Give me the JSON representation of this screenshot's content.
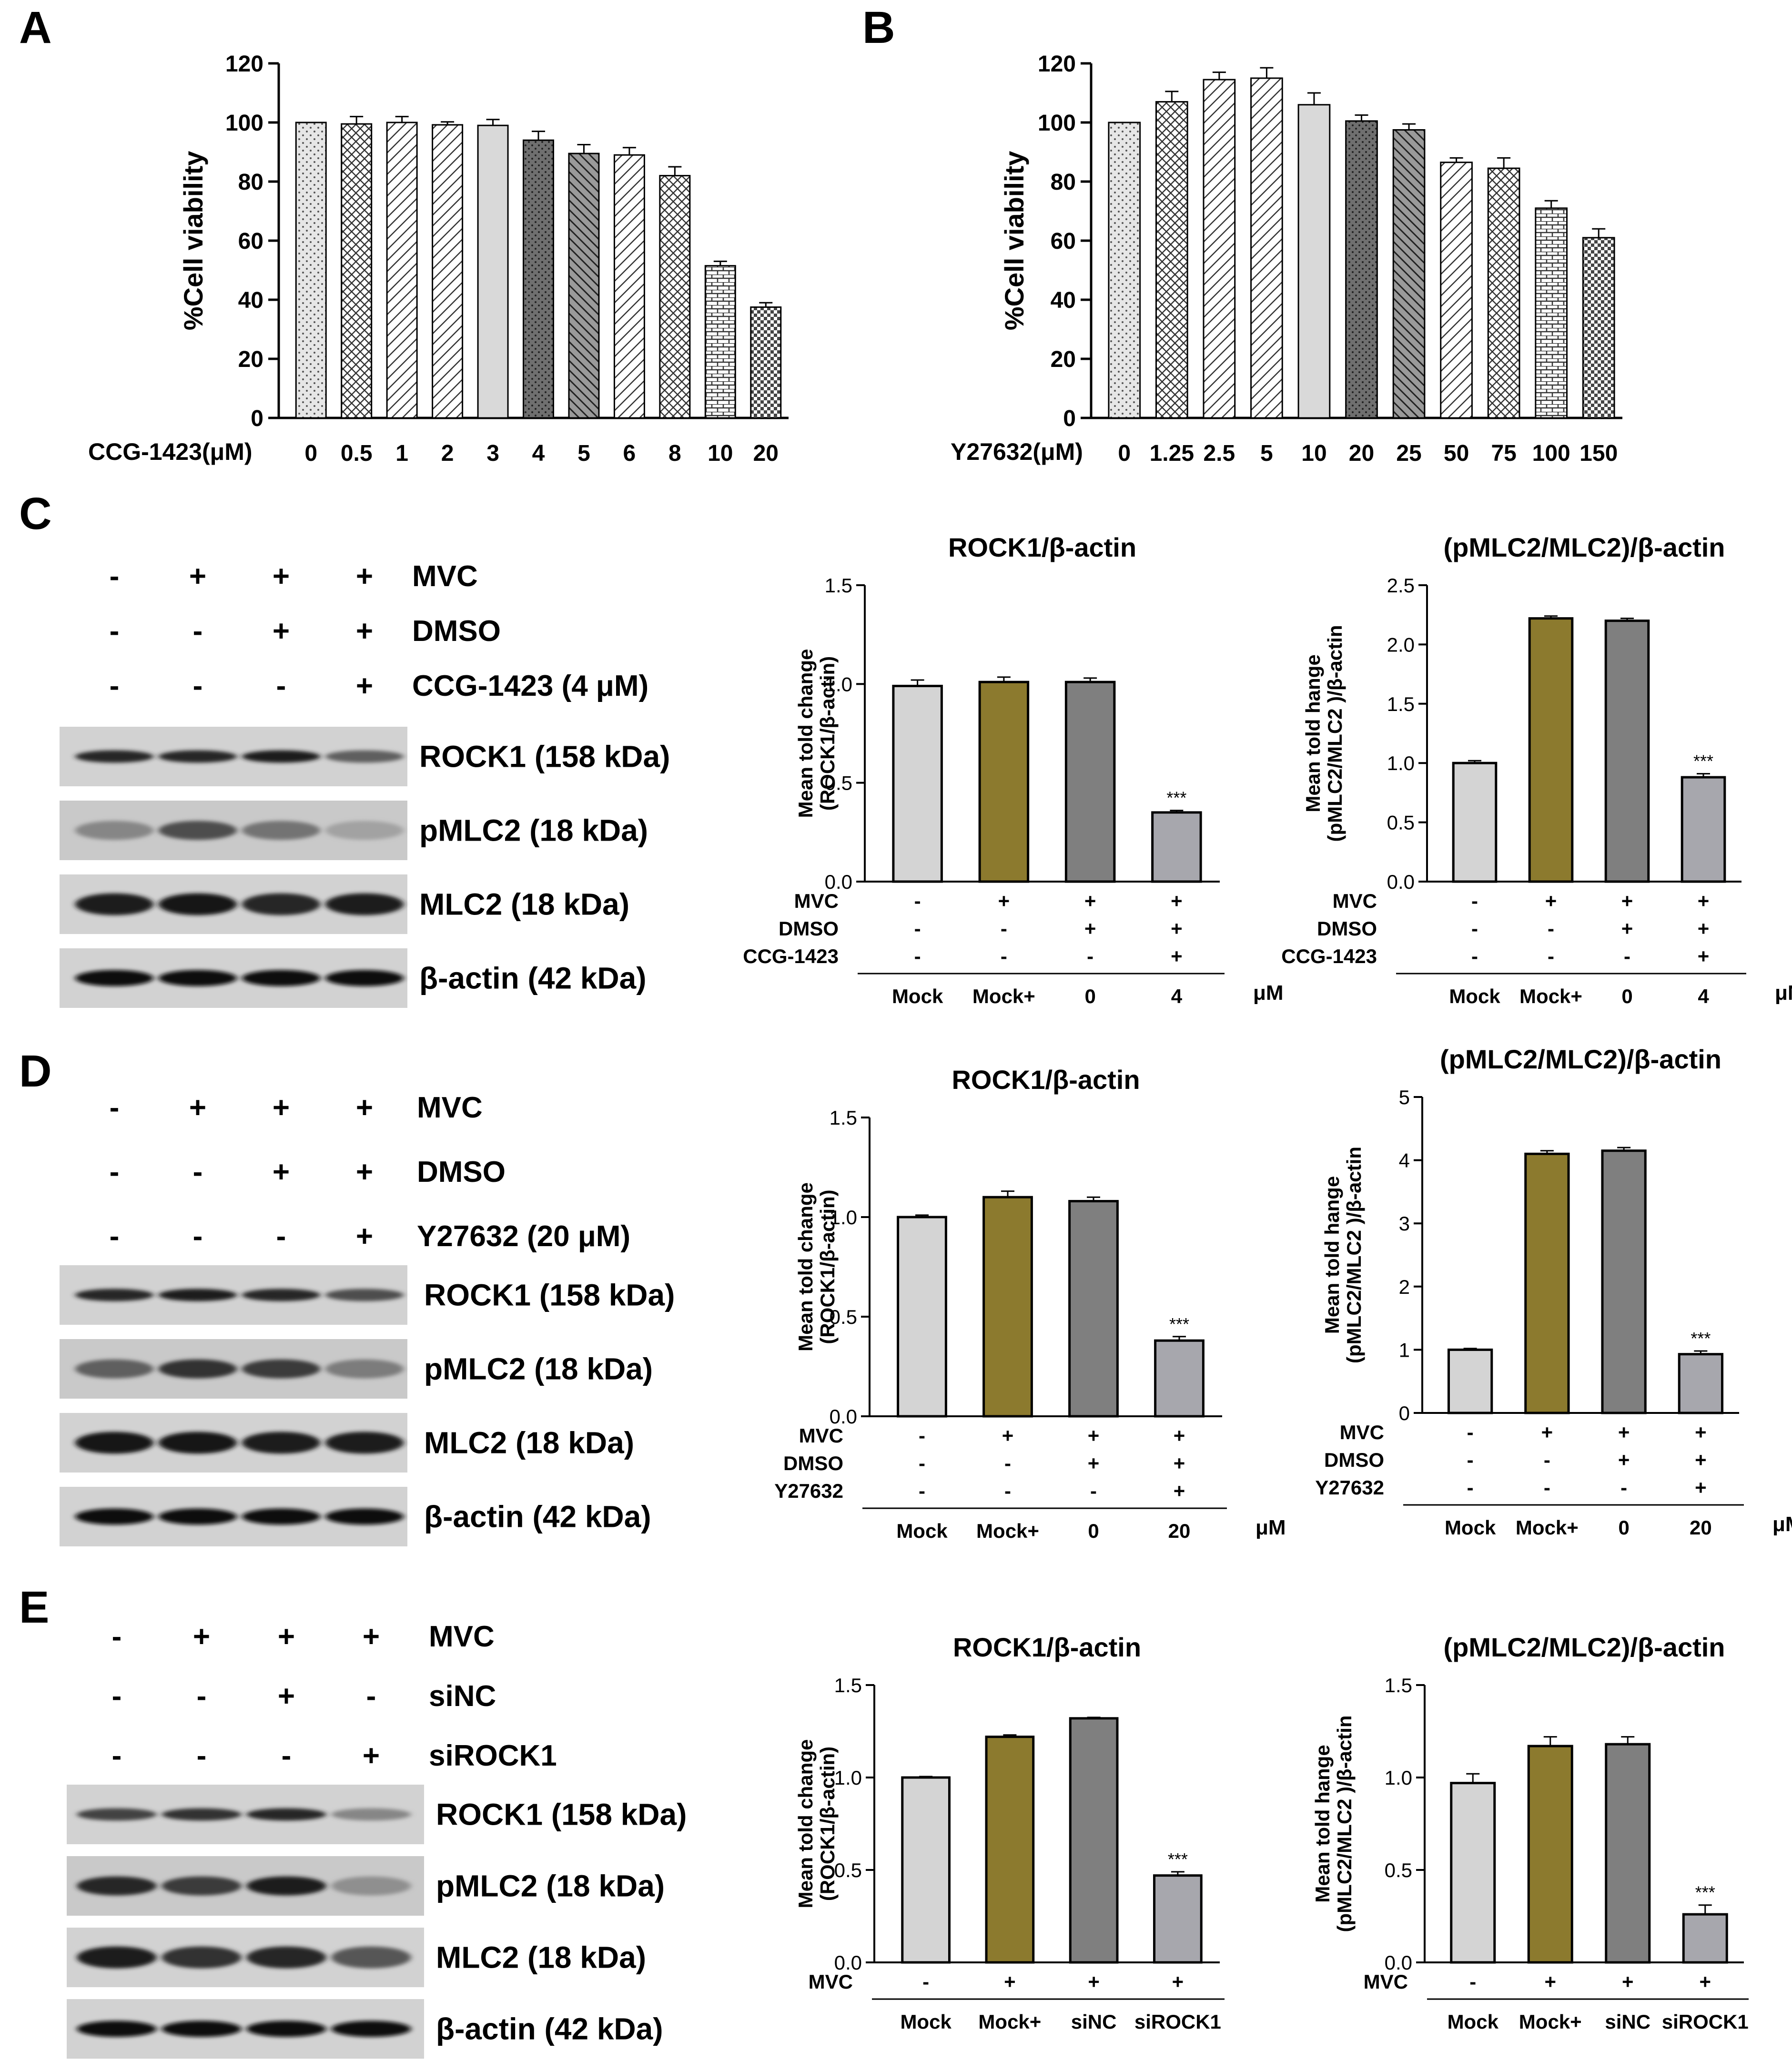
{
  "panel_letters": [
    "A",
    "B",
    "C",
    "D",
    "E"
  ],
  "chart_data": [
    {
      "type": "bar",
      "panel": "A",
      "title": "",
      "ylabel": "%Cell viability",
      "xlabel": "CCG-1423(μM)",
      "ylim": [
        0,
        120
      ],
      "yticks": [
        0,
        20,
        40,
        60,
        80,
        100,
        120
      ],
      "categories": [
        "0",
        "0.5",
        "1",
        "2",
        "3",
        "4",
        "5",
        "6",
        "8",
        "10",
        "20"
      ],
      "values": [
        100,
        99.5,
        100,
        99.2,
        99,
        94,
        89.5,
        89,
        82,
        51.5,
        37.5
      ],
      "errors": [
        0,
        2.5,
        2,
        1,
        2,
        3,
        3,
        2.5,
        3,
        1.5,
        1.5
      ],
      "fills": [
        "dots-light",
        "crosshatch",
        "diag",
        "diag",
        "solid-light",
        "dots-dark",
        "diag-dark",
        "diag",
        "crosshatch",
        "brick",
        "checker"
      ]
    },
    {
      "type": "bar",
      "panel": "B",
      "title": "",
      "ylabel": "%Cell viability",
      "xlabel": "Y27632(μM)",
      "ylim": [
        0,
        120
      ],
      "yticks": [
        0,
        20,
        40,
        60,
        80,
        100,
        120
      ],
      "categories": [
        "0",
        "1.25",
        "2.5",
        "5",
        "10",
        "20",
        "25",
        "50",
        "75",
        "100",
        "150"
      ],
      "values": [
        100,
        107,
        114.5,
        115,
        106,
        100.5,
        97.5,
        86.5,
        84.5,
        71,
        61
      ],
      "errors": [
        0,
        3.5,
        2.5,
        3.5,
        4,
        2,
        2,
        1.5,
        3.5,
        2.5,
        3
      ],
      "fills": [
        "dots-light",
        "crosshatch",
        "diag",
        "diag",
        "solid-light",
        "dots-dark",
        "diag-dark",
        "diag",
        "crosshatch",
        "brick",
        "checker"
      ]
    },
    {
      "type": "bar",
      "panel": "C",
      "title": "ROCK1/β-actin",
      "ylabel_lines": [
        "Mean told change",
        "(ROCK1/β-actin)"
      ],
      "ylim": [
        0,
        1.5
      ],
      "yticks": [
        "0.0",
        "0.5",
        "1.0",
        "1.5"
      ],
      "values": [
        0.99,
        1.01,
        1.01,
        0.35
      ],
      "errors": [
        0.03,
        0.025,
        0.02,
        0.01
      ],
      "sig": "***",
      "cond_rows": [
        {
          "label": "MVC",
          "vals": [
            "-",
            "+",
            "+",
            "+"
          ]
        },
        {
          "label": "DMSO",
          "vals": [
            "-",
            "-",
            "+",
            "+"
          ]
        },
        {
          "label": "CCG-1423",
          "vals": [
            "-",
            "-",
            "-",
            "+"
          ]
        }
      ],
      "categories": [
        "Mock",
        "Mock+",
        "0",
        "4"
      ],
      "unit": "μM"
    },
    {
      "type": "bar",
      "panel": "C",
      "title": "(pMLC2/MLC2)/β-actin",
      "ylabel_lines": [
        "Mean told hange",
        "(pMLC2/MLC2 )/β-actin"
      ],
      "ylim": [
        0,
        2.5
      ],
      "yticks": [
        "0.0",
        "0.5",
        "1.0",
        "1.5",
        "2.0",
        "2.5"
      ],
      "values": [
        1.0,
        2.22,
        2.2,
        0.88
      ],
      "errors": [
        0.02,
        0.02,
        0.02,
        0.03
      ],
      "sig": "***",
      "cond_rows": [
        {
          "label": "MVC",
          "vals": [
            "-",
            "+",
            "+",
            "+"
          ]
        },
        {
          "label": "DMSO",
          "vals": [
            "-",
            "-",
            "+",
            "+"
          ]
        },
        {
          "label": "CCG-1423",
          "vals": [
            "-",
            "-",
            "-",
            "+"
          ]
        }
      ],
      "categories": [
        "Mock",
        "Mock+",
        "0",
        "4"
      ],
      "unit": "μM"
    },
    {
      "type": "bar",
      "panel": "D",
      "title": "ROCK1/β-actin",
      "ylabel_lines": [
        "Mean told change",
        "(ROCK1/β-actin)"
      ],
      "ylim": [
        0,
        1.5
      ],
      "yticks": [
        "0.0",
        "0.5",
        "1.0",
        "1.5"
      ],
      "values": [
        1.0,
        1.1,
        1.08,
        0.38
      ],
      "errors": [
        0.01,
        0.03,
        0.02,
        0.02
      ],
      "sig": "***",
      "cond_rows": [
        {
          "label": "MVC",
          "vals": [
            "-",
            "+",
            "+",
            "+"
          ]
        },
        {
          "label": "DMSO",
          "vals": [
            "-",
            "-",
            "+",
            "+"
          ]
        },
        {
          "label": "Y27632",
          "vals": [
            "-",
            "-",
            "-",
            "+"
          ]
        }
      ],
      "categories": [
        "Mock",
        "Mock+",
        "0",
        "20"
      ],
      "unit": "μM"
    },
    {
      "type": "bar",
      "panel": "D",
      "title": "(pMLC2/MLC2)/β-actin",
      "ylabel_lines": [
        "Mean told hange",
        "(pMLC2/MLC2 )/β-actin"
      ],
      "ylim": [
        0,
        5
      ],
      "yticks": [
        "0",
        "1",
        "2",
        "3",
        "4",
        "5"
      ],
      "values": [
        1.0,
        4.1,
        4.15,
        0.93
      ],
      "errors": [
        0.02,
        0.05,
        0.05,
        0.05
      ],
      "sig": "***",
      "cond_rows": [
        {
          "label": "MVC",
          "vals": [
            "-",
            "+",
            "+",
            "+"
          ]
        },
        {
          "label": "DMSO",
          "vals": [
            "-",
            "-",
            "+",
            "+"
          ]
        },
        {
          "label": "Y27632",
          "vals": [
            "-",
            "-",
            "-",
            "+"
          ]
        }
      ],
      "categories": [
        "Mock",
        "Mock+",
        "0",
        "20"
      ],
      "unit": "μM"
    },
    {
      "type": "bar",
      "panel": "E",
      "title": "ROCK1/β-actin",
      "ylabel_lines": [
        "Mean told change",
        "(ROCK1/β-actin)"
      ],
      "ylim": [
        0,
        1.5
      ],
      "yticks": [
        "0.0",
        "0.5",
        "1.0",
        "1.5"
      ],
      "values": [
        1.0,
        1.22,
        1.32,
        0.47
      ],
      "errors": [
        0.005,
        0.01,
        0.005,
        0.02
      ],
      "sig": "***",
      "cond_rows": [
        {
          "label": "MVC",
          "vals": [
            "-",
            "+",
            "+",
            "+"
          ]
        }
      ],
      "categories": [
        "Mock",
        "Mock+",
        "siNC",
        "siROCK1"
      ],
      "unit": ""
    },
    {
      "type": "bar",
      "panel": "E",
      "title": "(pMLC2/MLC2)/β-actin",
      "ylabel_lines": [
        "Mean told hange",
        "(pMLC2/MLC2 )/β-actin"
      ],
      "ylim": [
        0,
        1.5
      ],
      "yticks": [
        "0.0",
        "0.5",
        "1.0",
        "1.5"
      ],
      "values": [
        0.97,
        1.17,
        1.18,
        0.26
      ],
      "errors": [
        0.05,
        0.05,
        0.04,
        0.05
      ],
      "sig": "***",
      "cond_rows": [
        {
          "label": "MVC",
          "vals": [
            "-",
            "+",
            "+",
            "+"
          ]
        }
      ],
      "categories": [
        "Mock",
        "Mock+",
        "siNC",
        "siROCK1"
      ],
      "unit": ""
    }
  ],
  "blots": [
    {
      "panel": "C",
      "treatments": [
        {
          "label": "MVC",
          "vals": [
            "-",
            "+",
            "+",
            "+"
          ]
        },
        {
          "label": "DMSO",
          "vals": [
            "-",
            "-",
            "+",
            "+"
          ]
        },
        {
          "label": "CCG-1423 (4 μM)",
          "vals": [
            "-",
            "-",
            "-",
            "+"
          ]
        }
      ],
      "bands": [
        {
          "label": "ROCK1 (158  kDa)",
          "intensity": [
            0.85,
            0.85,
            0.9,
            0.55
          ]
        },
        {
          "label": "pMLC2 (18  kDa)",
          "intensity": [
            0.35,
            0.65,
            0.45,
            0.2
          ]
        },
        {
          "label": "MLC2 (18  kDa)",
          "intensity": [
            0.9,
            0.95,
            0.85,
            0.9
          ]
        },
        {
          "label": "β-actin (42  kDa)",
          "intensity": [
            1,
            1,
            1,
            1
          ]
        }
      ]
    },
    {
      "panel": "D",
      "treatments": [
        {
          "label": "MVC",
          "vals": [
            "-",
            "+",
            "+",
            "+"
          ]
        },
        {
          "label": "DMSO",
          "vals": [
            "-",
            "-",
            "+",
            "+"
          ]
        },
        {
          "label": "Y27632 (20 μM)",
          "vals": [
            "-",
            "-",
            "-",
            "+"
          ]
        }
      ],
      "bands": [
        {
          "label": "ROCK1 (158  kDa)",
          "intensity": [
            0.85,
            0.9,
            0.85,
            0.65
          ]
        },
        {
          "label": "pMLC2 (18  kDa)",
          "intensity": [
            0.55,
            0.8,
            0.75,
            0.4
          ]
        },
        {
          "label": "MLC2 (18  kDa)",
          "intensity": [
            0.95,
            0.95,
            0.9,
            0.9
          ]
        },
        {
          "label": "β-actin (42  kDa)",
          "intensity": [
            1,
            1,
            1,
            1
          ]
        }
      ]
    },
    {
      "panel": "E",
      "treatments": [
        {
          "label": "MVC",
          "vals": [
            "-",
            "+",
            "+",
            "+"
          ]
        },
        {
          "label": "siNC",
          "vals": [
            "-",
            "-",
            "+",
            "-"
          ]
        },
        {
          "label": "siROCK1",
          "vals": [
            "-",
            "-",
            "-",
            "+"
          ]
        }
      ],
      "bands": [
        {
          "label": "ROCK1 (158  kDa)",
          "intensity": [
            0.7,
            0.8,
            0.85,
            0.35
          ]
        },
        {
          "label": "pMLC2 (18  kDa)",
          "intensity": [
            0.85,
            0.75,
            0.9,
            0.3
          ]
        },
        {
          "label": "MLC2 (18  kDa)",
          "intensity": [
            0.9,
            0.8,
            0.85,
            0.6
          ]
        },
        {
          "label": "β-actin (42  kDa)",
          "intensity": [
            1,
            1,
            1,
            1
          ]
        }
      ]
    }
  ],
  "colors": {
    "bar_light": "#d4d4d4",
    "bar_olive": "#8c7a2e",
    "bar_gray": "#7f7f7f",
    "bar_mid": "#a7a7ad"
  }
}
